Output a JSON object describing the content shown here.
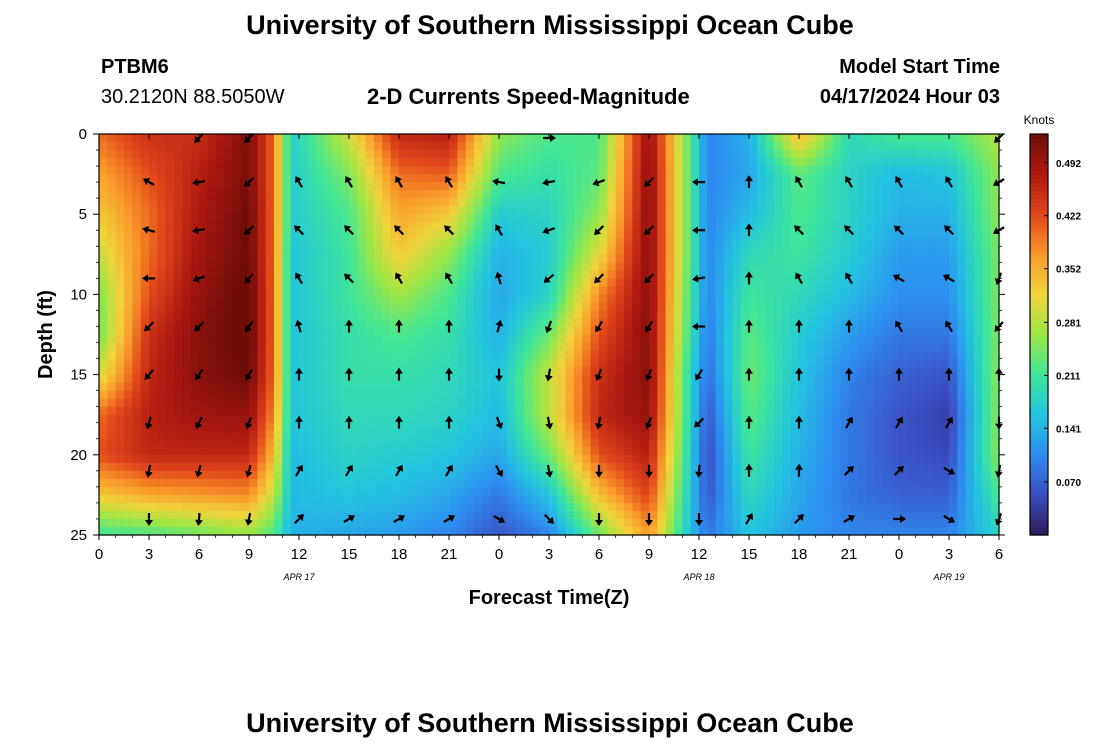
{
  "header": {
    "title": "University of Southern Mississippi Ocean Cube",
    "station_id": "PTBM6",
    "coords": "30.2120N  88.5050W",
    "product": "2-D Currents Speed-Magnitude",
    "model_start_label": "Model Start Time",
    "model_start_value": "04/17/2024 Hour 03"
  },
  "footer": {
    "title": "University of Southern Mississippi Ocean Cube"
  },
  "chart_data": {
    "type": "heatmap",
    "xlabel": "Forecast Time(Z)",
    "ylabel": "Depth (ft)",
    "x_range": [
      0,
      54
    ],
    "y_range": [
      0,
      25
    ],
    "x_ticks": [
      0,
      3,
      6,
      9,
      12,
      15,
      18,
      21,
      24,
      27,
      30,
      33,
      36,
      39,
      42,
      45,
      48,
      51,
      54
    ],
    "x_tick_labels": [
      "0",
      "3",
      "6",
      "9",
      "12",
      "15",
      "18",
      "21",
      "0",
      "3",
      "6",
      "9",
      "12",
      "15",
      "18",
      "21",
      "0",
      "3",
      "6"
    ],
    "y_ticks": [
      0,
      5,
      10,
      15,
      20,
      25
    ],
    "y_tick_labels": [
      "0",
      "5",
      "10",
      "15",
      "20",
      "25"
    ],
    "date_labels": [
      {
        "x": 12,
        "label": "APR 17"
      },
      {
        "x": 36,
        "label": "APR 18"
      },
      {
        "x": 51,
        "label": "APR 19"
      }
    ],
    "colorbar": {
      "title": "Knots",
      "range": [
        0.0,
        0.53
      ],
      "ticks": [
        0.07,
        0.141,
        0.211,
        0.281,
        0.352,
        0.422,
        0.492
      ],
      "tick_labels": [
        "0.070",
        "0.141",
        "0.211",
        "0.281",
        "0.352",
        "0.422",
        "0.492"
      ],
      "colors": [
        "#2a1a55",
        "#3b4cc0",
        "#2f8cf0",
        "#22c5e0",
        "#3ee69a",
        "#9ae646",
        "#f0d53a",
        "#f99a2a",
        "#e2461b",
        "#b01a10",
        "#6e0c08"
      ]
    },
    "speed_depths_ft": [
      0,
      2.5,
      5,
      7.5,
      10,
      12.5,
      15,
      17.5,
      20,
      22.5,
      25
    ],
    "speed_times": [
      0,
      3,
      6,
      9,
      10.5,
      11.5,
      15,
      18,
      21,
      24,
      27,
      30,
      33,
      35.5,
      36.5,
      39,
      42,
      45,
      48,
      51,
      54
    ],
    "speed_knots": [
      [
        0.4,
        0.45,
        0.45,
        0.52,
        0.4,
        0.17,
        0.3,
        0.46,
        0.47,
        0.26,
        0.22,
        0.22,
        0.5,
        0.22,
        0.1,
        0.14,
        0.35,
        0.19,
        0.22,
        0.22,
        0.28
      ],
      [
        0.36,
        0.42,
        0.47,
        0.52,
        0.4,
        0.17,
        0.25,
        0.4,
        0.41,
        0.22,
        0.2,
        0.23,
        0.51,
        0.22,
        0.1,
        0.13,
        0.23,
        0.18,
        0.15,
        0.16,
        0.26
      ],
      [
        0.33,
        0.4,
        0.48,
        0.53,
        0.4,
        0.17,
        0.22,
        0.36,
        0.33,
        0.17,
        0.18,
        0.26,
        0.51,
        0.22,
        0.1,
        0.15,
        0.22,
        0.18,
        0.14,
        0.14,
        0.26
      ],
      [
        0.29,
        0.4,
        0.49,
        0.53,
        0.4,
        0.16,
        0.21,
        0.33,
        0.26,
        0.14,
        0.17,
        0.31,
        0.51,
        0.22,
        0.1,
        0.19,
        0.21,
        0.17,
        0.12,
        0.12,
        0.25
      ],
      [
        0.25,
        0.42,
        0.5,
        0.54,
        0.4,
        0.16,
        0.21,
        0.27,
        0.22,
        0.13,
        0.18,
        0.38,
        0.51,
        0.21,
        0.1,
        0.21,
        0.19,
        0.15,
        0.11,
        0.11,
        0.25
      ],
      [
        0.24,
        0.45,
        0.51,
        0.54,
        0.4,
        0.16,
        0.2,
        0.22,
        0.2,
        0.14,
        0.24,
        0.42,
        0.51,
        0.2,
        0.09,
        0.23,
        0.17,
        0.12,
        0.09,
        0.09,
        0.25
      ],
      [
        0.3,
        0.46,
        0.51,
        0.53,
        0.4,
        0.16,
        0.2,
        0.2,
        0.19,
        0.16,
        0.29,
        0.45,
        0.51,
        0.18,
        0.08,
        0.24,
        0.16,
        0.1,
        0.07,
        0.06,
        0.26
      ],
      [
        0.4,
        0.47,
        0.49,
        0.5,
        0.38,
        0.16,
        0.19,
        0.19,
        0.18,
        0.15,
        0.29,
        0.46,
        0.5,
        0.18,
        0.06,
        0.23,
        0.15,
        0.09,
        0.06,
        0.04,
        0.26
      ],
      [
        0.42,
        0.46,
        0.46,
        0.46,
        0.34,
        0.15,
        0.18,
        0.17,
        0.16,
        0.13,
        0.24,
        0.42,
        0.47,
        0.17,
        0.05,
        0.21,
        0.14,
        0.09,
        0.06,
        0.05,
        0.26
      ],
      [
        0.33,
        0.36,
        0.37,
        0.38,
        0.29,
        0.15,
        0.16,
        0.15,
        0.13,
        0.09,
        0.16,
        0.34,
        0.43,
        0.16,
        0.06,
        0.19,
        0.13,
        0.09,
        0.07,
        0.07,
        0.22
      ],
      [
        0.21,
        0.22,
        0.24,
        0.26,
        0.22,
        0.14,
        0.13,
        0.12,
        0.1,
        0.06,
        0.1,
        0.24,
        0.37,
        0.15,
        0.09,
        0.16,
        0.12,
        0.1,
        0.1,
        0.1,
        0.18
      ]
    ],
    "arrow_times": [
      0,
      3,
      6,
      9,
      12,
      15,
      18,
      21,
      24,
      27,
      30,
      33,
      36,
      39,
      42,
      45,
      48,
      51,
      54
    ],
    "arrow_depths_ft": [
      0,
      3,
      6,
      9,
      12,
      15,
      18,
      21,
      24
    ],
    "arrow_direction_to_deg": [
      [
        null,
        null,
        225,
        225,
        null,
        null,
        null,
        null,
        null,
        90,
        null,
        null,
        null,
        null,
        null,
        null,
        null,
        null,
        225
      ],
      [
        null,
        300,
        260,
        225,
        330,
        330,
        330,
        330,
        280,
        260,
        250,
        225,
        270,
        0,
        330,
        330,
        330,
        330,
        240
      ],
      [
        null,
        285,
        260,
        225,
        315,
        315,
        315,
        315,
        330,
        250,
        225,
        225,
        270,
        0,
        315,
        315,
        315,
        315,
        240
      ],
      [
        null,
        270,
        250,
        220,
        330,
        315,
        330,
        330,
        345,
        230,
        225,
        225,
        260,
        0,
        330,
        330,
        300,
        300,
        200
      ],
      [
        null,
        225,
        225,
        215,
        345,
        0,
        0,
        0,
        15,
        200,
        210,
        210,
        270,
        0,
        0,
        0,
        330,
        330,
        220
      ],
      [
        null,
        220,
        215,
        210,
        0,
        0,
        0,
        0,
        180,
        190,
        200,
        200,
        210,
        0,
        0,
        0,
        0,
        0,
        0
      ],
      [
        null,
        195,
        205,
        200,
        0,
        0,
        0,
        0,
        160,
        170,
        190,
        200,
        225,
        0,
        0,
        30,
        30,
        30,
        180
      ],
      [
        null,
        190,
        195,
        195,
        30,
        30,
        30,
        30,
        150,
        170,
        180,
        180,
        185,
        0,
        0,
        45,
        45,
        120,
        190
      ],
      [
        null,
        180,
        185,
        190,
        45,
        60,
        60,
        60,
        120,
        135,
        180,
        180,
        180,
        30,
        45,
        60,
        90,
        120,
        200
      ]
    ]
  }
}
